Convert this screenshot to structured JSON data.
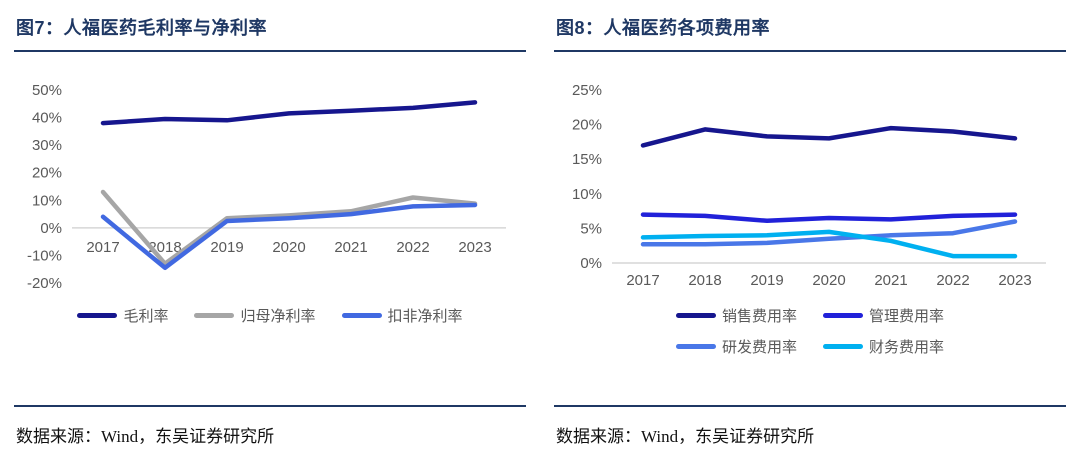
{
  "source_notes": [
    "数据来源：Wind，东吴证券研究所",
    "数据来源：Wind，东吴证券研究所"
  ],
  "styles": {
    "accent_navy": "#1F3864",
    "axis_text_color": "#595959",
    "zero_line_color": "#D6D6D6"
  },
  "chart_data": [
    {
      "type": "line",
      "title": "图7：人福医药毛利率与净利率",
      "categories": [
        "2017",
        "2018",
        "2019",
        "2020",
        "2021",
        "2022",
        "2023"
      ],
      "series": [
        {
          "name": "毛利率",
          "color": "#16168E",
          "values": [
            38,
            39.5,
            39,
            41.5,
            42.5,
            43.5,
            45.5
          ]
        },
        {
          "name": "归母净利率",
          "color": "#A6A6A6",
          "values": [
            13,
            -13,
            3.5,
            4.5,
            6,
            11,
            8.8
          ]
        },
        {
          "name": "扣非净利率",
          "color": "#4169E1",
          "values": [
            4,
            -14.5,
            2.5,
            3.5,
            5,
            7.8,
            8.3
          ]
        }
      ],
      "ylim": [
        -20,
        50
      ],
      "ytick_step": 10,
      "ytick_suffix": "%",
      "grid": false,
      "legend_position": "bottom",
      "legend_rows": 1
    },
    {
      "type": "line",
      "title": "图8：人福医药各项费用率",
      "categories": [
        "2017",
        "2018",
        "2019",
        "2020",
        "2021",
        "2022",
        "2023"
      ],
      "series": [
        {
          "name": "销售费用率",
          "color": "#16168E",
          "values": [
            17,
            19.3,
            18.3,
            18,
            19.5,
            19,
            18
          ]
        },
        {
          "name": "管理费用率",
          "color": "#2121D9",
          "values": [
            7,
            6.8,
            6.1,
            6.5,
            6.3,
            6.8,
            7
          ]
        },
        {
          "name": "研发费用率",
          "color": "#4977E8",
          "values": [
            2.7,
            2.7,
            2.9,
            3.5,
            4,
            4.3,
            6
          ]
        },
        {
          "name": "财务费用率",
          "color": "#00B0F0",
          "values": [
            3.7,
            3.9,
            4,
            4.5,
            3.2,
            1,
            1
          ]
        }
      ],
      "ylim": [
        0,
        25
      ],
      "ytick_step": 5,
      "ytick_suffix": "%",
      "grid": false,
      "legend_position": "bottom",
      "legend_rows": 2
    }
  ]
}
